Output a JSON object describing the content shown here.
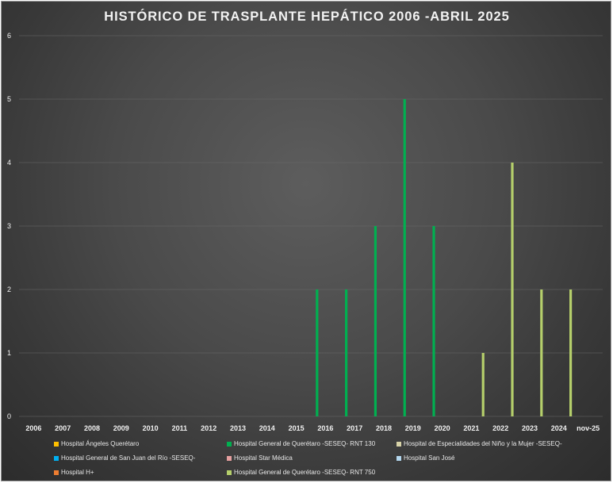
{
  "chart_data": {
    "type": "bar",
    "title": "HISTÓRICO DE TRASPLANTE HEPÁTICO 2006 -ABRIL 2025",
    "xlabel": "",
    "ylabel": "",
    "ylim": [
      0,
      6
    ],
    "yticks": [
      0,
      1,
      2,
      3,
      4,
      5,
      6
    ],
    "grid": true,
    "legend_position": "bottom",
    "categories": [
      "2006",
      "2007",
      "2008",
      "2009",
      "2010",
      "2011",
      "2012",
      "2013",
      "2014",
      "2015",
      "2016",
      "2017",
      "2018",
      "2019",
      "2020",
      "2021",
      "2022",
      "2023",
      "2024",
      "nov-25"
    ],
    "series": [
      {
        "name": "Hospital Ángeles Querétaro",
        "color": "#ffc000",
        "values": [
          0,
          0,
          0,
          0,
          0,
          0,
          0,
          0,
          0,
          0,
          0,
          0,
          0,
          0,
          0,
          0,
          0,
          0,
          0,
          0
        ]
      },
      {
        "name": "Hospital General de Querétaro -SESEQ- RNT 130",
        "color": "#00b050",
        "values": [
          0,
          0,
          0,
          0,
          0,
          0,
          0,
          0,
          0,
          0,
          2,
          2,
          3,
          5,
          3,
          0,
          0,
          0,
          0,
          0
        ]
      },
      {
        "name": "Hospital de Especialidades del Niño y la Mujer -SESEQ-",
        "color": "#d8d3a8",
        "values": [
          0,
          0,
          0,
          0,
          0,
          0,
          0,
          0,
          0,
          0,
          0,
          0,
          0,
          0,
          0,
          0,
          0,
          0,
          0,
          0
        ]
      },
      {
        "name": "Hospital General de San Juan del Río -SESEQ-",
        "color": "#00b0f0",
        "values": [
          0,
          0,
          0,
          0,
          0,
          0,
          0,
          0,
          0,
          0,
          0,
          0,
          0,
          0,
          0,
          0,
          0,
          0,
          0,
          0
        ]
      },
      {
        "name": "Hospital Star Médica",
        "color": "#e6a0a0",
        "values": [
          0,
          0,
          0,
          0,
          0,
          0,
          0,
          0,
          0,
          0,
          0,
          0,
          0,
          0,
          0,
          0,
          0,
          0,
          0,
          0
        ]
      },
      {
        "name": "Hospital San José",
        "color": "#b4d7ee",
        "values": [
          0,
          0,
          0,
          0,
          0,
          0,
          0,
          0,
          0,
          0,
          0,
          0,
          0,
          0,
          0,
          0,
          0,
          0,
          0,
          0
        ]
      },
      {
        "name": "Hospital H+",
        "color": "#ed7d31",
        "values": [
          0,
          0,
          0,
          0,
          0,
          0,
          0,
          0,
          0,
          0,
          0,
          0,
          0,
          0,
          0,
          0,
          0,
          0,
          0,
          0
        ]
      },
      {
        "name": "Hospital General de Querétaro -SESEQ- RNT 750",
        "color": "#b5cf6b",
        "values": [
          0,
          0,
          0,
          0,
          0,
          0,
          0,
          0,
          0,
          0,
          0,
          0,
          0,
          0,
          0,
          1,
          4,
          2,
          2,
          0
        ]
      }
    ]
  }
}
